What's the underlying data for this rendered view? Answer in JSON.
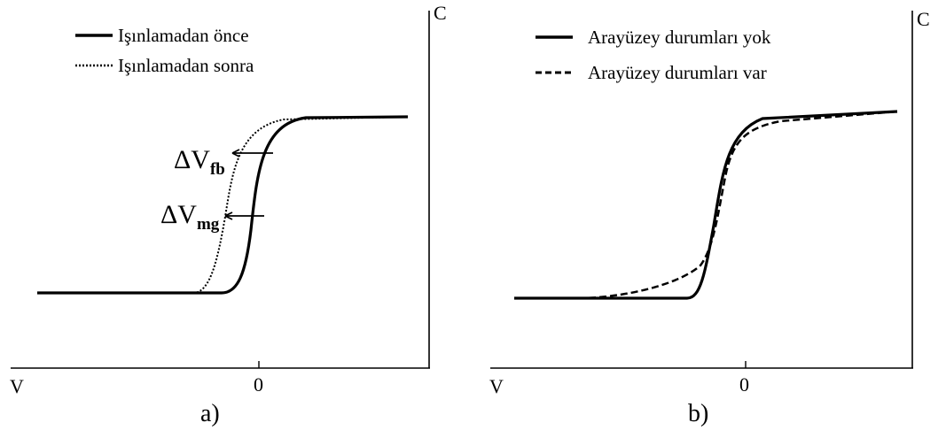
{
  "panel_a": {
    "label": "a)",
    "y_axis_label": "C",
    "x_axis_label": "V",
    "x_tick_zero": "0",
    "legend": [
      {
        "text": "Işınlamadan önce",
        "style": "solid"
      },
      {
        "text": "Işınlamadan sonra",
        "style": "dotted"
      }
    ],
    "annotations": [
      {
        "main": "ΔV",
        "sub": "fb"
      },
      {
        "main": "ΔV",
        "sub": "mg"
      }
    ]
  },
  "panel_b": {
    "label": "b)",
    "y_axis_label": "C",
    "x_axis_label": "V",
    "x_tick_zero": "0",
    "legend": [
      {
        "text": "Arayüzey durumları yok",
        "style": "solid"
      },
      {
        "text": "Arayüzey durumları var",
        "style": "dashed"
      }
    ]
  },
  "colors": {
    "line": "#000000",
    "background": "#ffffff"
  }
}
